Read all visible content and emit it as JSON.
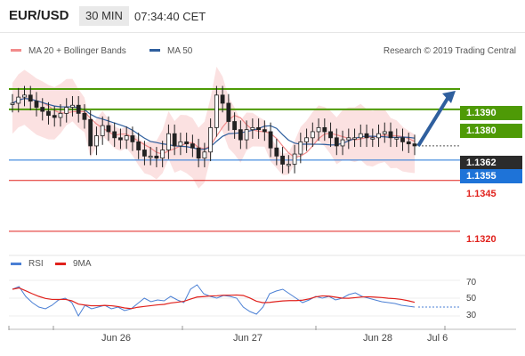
{
  "header": {
    "pair": "EUR/USD",
    "timeframe": "30 MIN",
    "time": "07:34:40 CET"
  },
  "legend": {
    "ma20_label": "MA 20 + Bollinger Bands",
    "ma20_color": "#f28b8b",
    "ma50_label": "MA 50",
    "ma50_color": "#2f5f9e",
    "research": "Research © 2019 Trading Central"
  },
  "levels": {
    "r2": {
      "label": "1.1390",
      "value": 1.139,
      "color": "#4e9a06"
    },
    "r1": {
      "label": "1.1380",
      "value": 1.138,
      "color": "#4e9a06"
    },
    "last": {
      "label": "1.1362",
      "value": 1.1362,
      "color": "#2b2b2b"
    },
    "pivot": {
      "label": "1.1355",
      "value": 1.1355,
      "color": "#1e73d8"
    },
    "s1": {
      "label": "1.1345",
      "value": 1.1345,
      "color": "#e0211c"
    },
    "s2": {
      "label": "1.1320",
      "value": 1.132,
      "color": "#e0211c"
    }
  },
  "indicator": {
    "rsi_label": "RSI",
    "rsi_color": "#4a7fd4",
    "ma9_label": "9MA",
    "ma9_color": "#e0211c",
    "ticks": [
      "70",
      "50",
      "30"
    ],
    "tick_values": [
      70,
      50,
      30
    ]
  },
  "xaxis": {
    "labels": [
      "Jun 26",
      "Jun 27",
      "Jun 28",
      "Jul 6"
    ]
  },
  "chart_data": {
    "type": "candlestick",
    "instrument": "EUR/USD",
    "timeframe": "30 MIN",
    "ylim": [
      1.1309,
      1.1404
    ],
    "price_approx_path": [
      [
        0,
        1.1383
      ],
      [
        1,
        1.1386
      ],
      [
        2,
        1.1387
      ],
      [
        3,
        1.1384
      ],
      [
        4,
        1.1381
      ],
      [
        5,
        1.1379
      ],
      [
        6,
        1.1377
      ],
      [
        7,
        1.1376
      ],
      [
        8,
        1.1378
      ],
      [
        9,
        1.1381
      ],
      [
        10,
        1.1382
      ],
      [
        11,
        1.1378
      ],
      [
        12,
        1.1375
      ],
      [
        13,
        1.1362
      ],
      [
        14,
        1.1367
      ],
      [
        15,
        1.1372
      ],
      [
        16,
        1.1369
      ],
      [
        17,
        1.1366
      ],
      [
        18,
        1.1365
      ],
      [
        19,
        1.1367
      ],
      [
        20,
        1.1364
      ],
      [
        21,
        1.136
      ],
      [
        22,
        1.1357
      ],
      [
        23,
        1.1357
      ],
      [
        24,
        1.1356
      ],
      [
        25,
        1.136
      ],
      [
        26,
        1.1368
      ],
      [
        27,
        1.1362
      ],
      [
        28,
        1.1364
      ],
      [
        29,
        1.1363
      ],
      [
        30,
        1.1361
      ],
      [
        31,
        1.1356
      ],
      [
        32,
        1.1359
      ],
      [
        33,
        1.1371
      ],
      [
        34,
        1.1387
      ],
      [
        35,
        1.1383
      ],
      [
        36,
        1.1374
      ],
      [
        37,
        1.137
      ],
      [
        38,
        1.1365
      ],
      [
        39,
        1.137
      ],
      [
        40,
        1.1371
      ],
      [
        41,
        1.137
      ],
      [
        42,
        1.1369
      ],
      [
        43,
        1.1361
      ],
      [
        44,
        1.1357
      ],
      [
        45,
        1.1353
      ],
      [
        46,
        1.1353
      ],
      [
        47,
        1.1358
      ],
      [
        48,
        1.1364
      ],
      [
        49,
        1.1366
      ],
      [
        50,
        1.1369
      ],
      [
        51,
        1.1371
      ],
      [
        52,
        1.1369
      ],
      [
        53,
        1.1366
      ],
      [
        54,
        1.1362
      ],
      [
        55,
        1.1365
      ],
      [
        56,
        1.1366
      ],
      [
        57,
        1.1366
      ],
      [
        58,
        1.1368
      ],
      [
        59,
        1.1366
      ],
      [
        60,
        1.1366
      ],
      [
        61,
        1.1368
      ],
      [
        62,
        1.1369
      ],
      [
        63,
        1.1366
      ],
      [
        64,
        1.1366
      ],
      [
        65,
        1.1364
      ],
      [
        66,
        1.1363
      ],
      [
        67,
        1.1362
      ]
    ],
    "annotations": [
      {
        "type": "arrow",
        "direction": "up",
        "target": "1.1390"
      }
    ],
    "indicators": [
      "MA 20 + Bollinger Bands",
      "MA 50",
      "RSI",
      "9MA"
    ],
    "rsi": {
      "ylim": [
        20,
        80
      ],
      "ticks": [
        70,
        50,
        30
      ],
      "values_approx": [
        60,
        63,
        52,
        45,
        40,
        38,
        42,
        48,
        50,
        45,
        30,
        42,
        38,
        40,
        42,
        38,
        40,
        36,
        38,
        44,
        50,
        46,
        48,
        47,
        52,
        48,
        45,
        60,
        65,
        55,
        52,
        50,
        53,
        52,
        50,
        40,
        35,
        32,
        40,
        55,
        58,
        60,
        55,
        50,
        45,
        48,
        52,
        50,
        52,
        48,
        50,
        54,
        56,
        52,
        50,
        48,
        46,
        45,
        44,
        42,
        41,
        40
      ]
    }
  }
}
